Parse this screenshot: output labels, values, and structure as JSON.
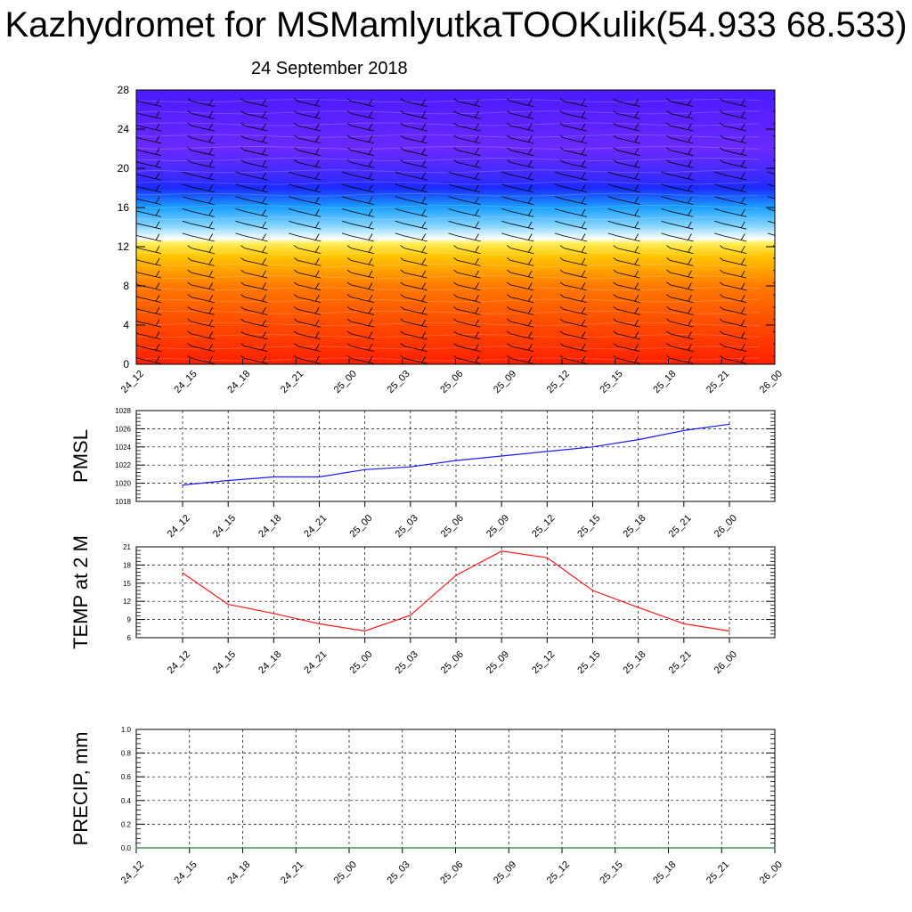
{
  "title": "Kazhydromet for MSMamlyutkaTOOKulik(54.933 68.533)",
  "subtitle": "24 September 2018",
  "time_labels": [
    "24_12",
    "24_15",
    "24_18",
    "24_21",
    "25_00",
    "25_03",
    "25_06",
    "25_09",
    "25_12",
    "25_15",
    "25_18",
    "25_21",
    "26_00"
  ],
  "colors": {
    "pmsl_line": "#1a1aff",
    "temp_line": "#ff1a1a",
    "precip_line": "#2e7d32",
    "grid": "#000000"
  },
  "chart_data": [
    {
      "id": "upper-air",
      "type": "heatmap",
      "xlabel": "",
      "ylabel": "",
      "x": [
        "24_12",
        "24_15",
        "24_18",
        "24_21",
        "25_00",
        "25_03",
        "25_06",
        "25_09",
        "25_12",
        "25_15",
        "25_18",
        "25_21",
        "26_00"
      ],
      "y_ticks": [
        0,
        4,
        8,
        12,
        16,
        20,
        24,
        28
      ],
      "ylim": [
        0,
        28
      ],
      "description_layers": "filled color contours with wind barbs",
      "color_stops": [
        {
          "level": 0,
          "color": "#ff1f00"
        },
        {
          "level": 4,
          "color": "#ff4a00"
        },
        {
          "level": 8,
          "color": "#ff7a00"
        },
        {
          "level": 11,
          "color": "#ffc400"
        },
        {
          "level": 12.4,
          "color": "#fff060"
        },
        {
          "level": 12.8,
          "color": "#ffffff"
        },
        {
          "level": 14,
          "color": "#8fd8ff"
        },
        {
          "level": 16,
          "color": "#1aa0ff"
        },
        {
          "level": 18,
          "color": "#1a2aff"
        },
        {
          "level": 19,
          "color": "#3a2aff"
        },
        {
          "level": 22,
          "color": "#6a2aff"
        },
        {
          "level": 28,
          "color": "#4a1aff"
        }
      ]
    },
    {
      "id": "pmsl",
      "type": "line",
      "ylabel": "PMSL",
      "x": [
        "24_12",
        "24_15",
        "24_18",
        "24_21",
        "25_00",
        "25_03",
        "25_06",
        "25_09",
        "25_12",
        "25_15",
        "25_18",
        "25_21",
        "26_00"
      ],
      "series": [
        {
          "values": [
            1019.8,
            1020.3,
            1020.7,
            1020.7,
            1021.5,
            1021.8,
            1022.5,
            1023.0,
            1023.5,
            1024.0,
            1024.8,
            1025.8,
            1026.5
          ]
        }
      ],
      "ylim": [
        1018,
        1028
      ],
      "y_ticks": [
        1018,
        1020,
        1022,
        1024,
        1026,
        1028
      ]
    },
    {
      "id": "temp",
      "type": "line",
      "ylabel": "TEMP at 2 M",
      "x": [
        "24_12",
        "24_15",
        "24_18",
        "24_21",
        "25_00",
        "25_03",
        "25_06",
        "25_09",
        "25_12",
        "25_15",
        "25_18",
        "25_21",
        "26_00"
      ],
      "series": [
        {
          "values": [
            16.7,
            11.5,
            10.0,
            8.3,
            7.1,
            9.7,
            16.3,
            20.3,
            19.2,
            13.8,
            11.0,
            8.3,
            7.1
          ]
        }
      ],
      "ylim": [
        6,
        21
      ],
      "y_ticks": [
        6,
        9,
        12,
        15,
        18,
        21
      ]
    },
    {
      "id": "precip",
      "type": "line",
      "ylabel": "PRECIP, mm",
      "x": [
        "24_12",
        "24_15",
        "24_18",
        "24_21",
        "25_00",
        "25_03",
        "25_06",
        "25_09",
        "25_12",
        "25_15",
        "25_18",
        "25_21",
        "26_00"
      ],
      "series": [
        {
          "values": [
            0,
            0,
            0,
            0,
            0,
            0,
            0,
            0,
            0,
            0,
            0,
            0,
            0
          ]
        }
      ],
      "ylim": [
        0,
        1.0
      ],
      "y_ticks": [
        0.0,
        0.2,
        0.4,
        0.6,
        0.8,
        1.0
      ]
    }
  ]
}
